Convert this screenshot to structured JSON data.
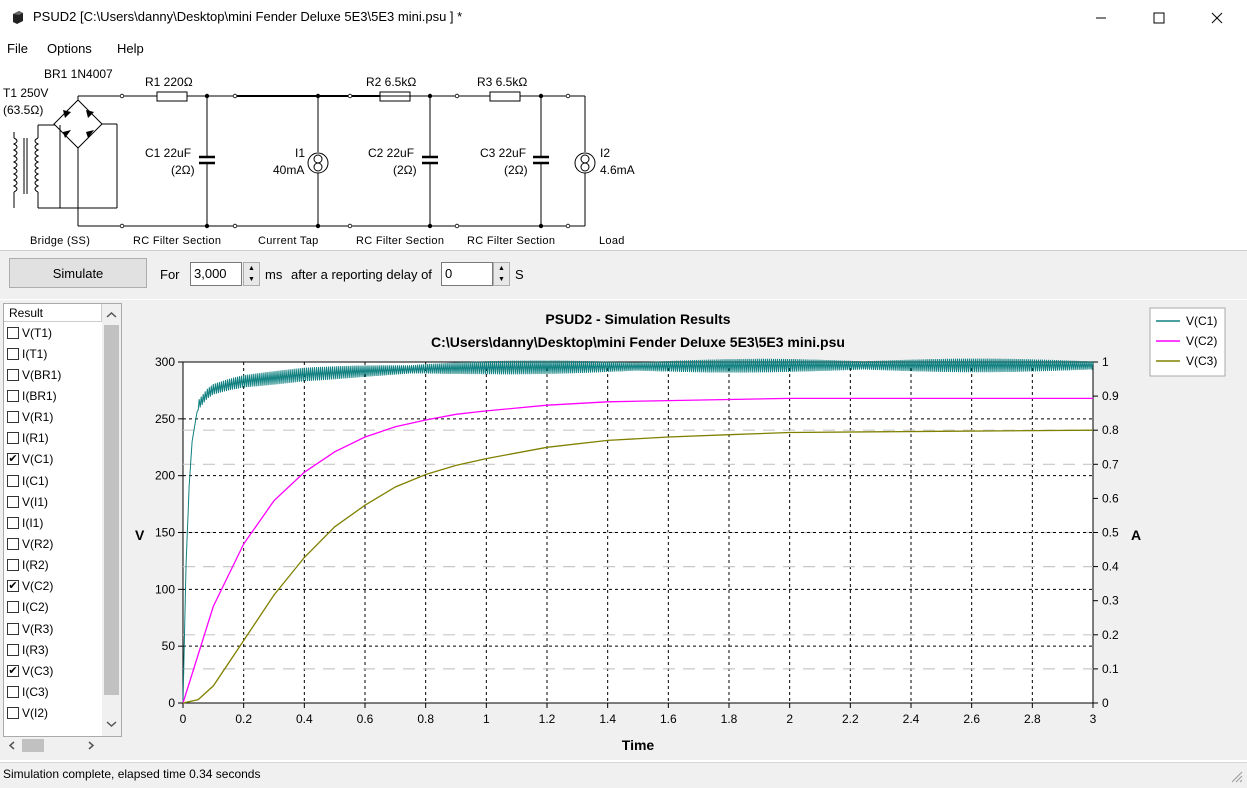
{
  "window": {
    "title": "PSUD2  [C:\\Users\\danny\\Desktop\\mini Fender Deluxe 5E3\\5E3 mini.psu ] *"
  },
  "menu": [
    "File",
    "Options",
    "Help"
  ],
  "schematic": {
    "transformer": [
      "T1 250V",
      "(63.5Ω)"
    ],
    "rectifier": "BR1 1N4007",
    "r1": "R1 220Ω",
    "c1": [
      "C1 22uF",
      "(2Ω)"
    ],
    "i1": [
      "I1",
      "40mA"
    ],
    "r2": "R2 6.5kΩ",
    "c2": [
      "C2 22uF",
      "(2Ω)"
    ],
    "r3": "R3 6.5kΩ",
    "c3": [
      "C3 22uF",
      "(2Ω)"
    ],
    "i2": [
      "I2",
      "4.6mA"
    ],
    "captions": [
      "Bridge (SS)",
      "RC Filter Section",
      "Current Tap",
      "RC Filter Section",
      "RC Filter Section",
      "Load"
    ]
  },
  "toolbar": {
    "simulate_label": "Simulate",
    "for_label": "For",
    "duration_value": "3,000",
    "ms_label": "ms",
    "after_label": "after a reporting delay of",
    "delay_value": "0",
    "s_label": "S"
  },
  "results_list": {
    "header": "Result",
    "items": [
      {
        "label": "V(T1)",
        "checked": false
      },
      {
        "label": "I(T1)",
        "checked": false
      },
      {
        "label": "V(BR1)",
        "checked": false
      },
      {
        "label": "I(BR1)",
        "checked": false
      },
      {
        "label": "V(R1)",
        "checked": false
      },
      {
        "label": "I(R1)",
        "checked": false
      },
      {
        "label": "V(C1)",
        "checked": true
      },
      {
        "label": "I(C1)",
        "checked": false
      },
      {
        "label": "V(I1)",
        "checked": false
      },
      {
        "label": "I(I1)",
        "checked": false
      },
      {
        "label": "V(R2)",
        "checked": false
      },
      {
        "label": "I(R2)",
        "checked": false
      },
      {
        "label": "V(C2)",
        "checked": true
      },
      {
        "label": "I(C2)",
        "checked": false
      },
      {
        "label": "V(R3)",
        "checked": false
      },
      {
        "label": "I(R3)",
        "checked": false
      },
      {
        "label": "V(C3)",
        "checked": true
      },
      {
        "label": "I(C3)",
        "checked": false
      },
      {
        "label": "V(I2)",
        "checked": false
      }
    ]
  },
  "chart_data": {
    "type": "line",
    "title": "PSUD2 - Simulation Results",
    "subtitle": "C:\\Users\\danny\\Desktop\\mini Fender Deluxe 5E3\\5E3 mini.psu",
    "xlabel": "Time",
    "ylabel": "V",
    "y2label": "A",
    "xlim": [
      0,
      3
    ],
    "ylim": [
      0,
      300
    ],
    "y2lim": [
      0,
      1
    ],
    "xticks": [
      "0",
      "0.2",
      "0.4",
      "0.6",
      "0.8",
      "1",
      "1.2",
      "1.4",
      "1.6",
      "1.8",
      "2",
      "2.2",
      "2.4",
      "2.6",
      "2.8",
      "3"
    ],
    "yticks": [
      "0",
      "50",
      "100",
      "150",
      "200",
      "250",
      "300"
    ],
    "y2ticks": [
      "0",
      "0.1",
      "0.2",
      "0.3",
      "0.4",
      "0.5",
      "0.6",
      "0.7",
      "0.8",
      "0.9",
      "1"
    ],
    "grid": true,
    "legend_position": "top-right",
    "series": [
      {
        "name": "V(C1)",
        "color": "#108080",
        "x": [
          0,
          0.01,
          0.02,
          0.03,
          0.05,
          0.08,
          0.1,
          0.15,
          0.2,
          0.3,
          0.4,
          0.6,
          0.8,
          1.0,
          1.5,
          2.0,
          2.5,
          3.0
        ],
        "y": [
          0,
          120,
          190,
          230,
          262,
          272,
          276,
          280,
          283,
          286,
          289,
          292,
          294,
          295,
          296,
          297,
          297,
          297
        ],
        "ripple": 6
      },
      {
        "name": "V(C2)",
        "color": "#ff00ff",
        "x": [
          0,
          0.1,
          0.2,
          0.3,
          0.4,
          0.5,
          0.6,
          0.7,
          0.8,
          0.9,
          1.0,
          1.2,
          1.4,
          1.6,
          1.8,
          2.0,
          2.2,
          2.5,
          3.0
        ],
        "y": [
          0,
          85,
          140,
          178,
          203,
          221,
          234,
          243,
          249,
          254,
          257,
          262,
          265,
          266,
          267,
          268,
          268,
          268,
          268
        ]
      },
      {
        "name": "V(C3)",
        "color": "#808000",
        "x": [
          0,
          0.05,
          0.1,
          0.2,
          0.3,
          0.4,
          0.5,
          0.6,
          0.7,
          0.8,
          0.9,
          1.0,
          1.2,
          1.4,
          1.6,
          1.8,
          2.0,
          2.5,
          3.0
        ],
        "y": [
          0,
          3,
          15,
          55,
          95,
          128,
          155,
          174,
          190,
          201,
          209,
          215,
          225,
          231,
          234,
          236,
          238,
          239,
          240
        ]
      }
    ]
  },
  "status": {
    "text": "Simulation complete, elapsed time 0.34 seconds"
  }
}
